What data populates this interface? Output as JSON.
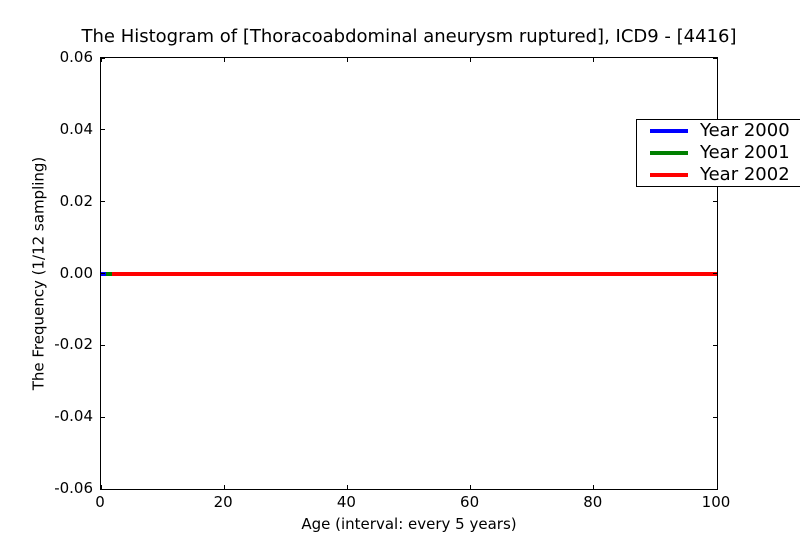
{
  "figure": {
    "title": "The Histogram of [Thoracoabdominal aneurysm ruptured], ICD9 - [4416]"
  },
  "chart_data": {
    "type": "line",
    "title": "The Histogram of [Thoracoabdominal aneurysm ruptured], ICD9 - [4416]",
    "xlabel": "Age (interval: every 5 years)",
    "ylabel": "The Frequency (1/12 sampling)",
    "xlim": [
      0,
      100
    ],
    "ylim": [
      -0.06,
      0.06
    ],
    "grid": false,
    "legend_position": "upper right",
    "x_ticks": [
      {
        "label": "0",
        "value": 0
      },
      {
        "label": "20",
        "value": 20
      },
      {
        "label": "40",
        "value": 40
      },
      {
        "label": "60",
        "value": 60
      },
      {
        "label": "80",
        "value": 80
      },
      {
        "label": "100",
        "value": 100
      }
    ],
    "y_ticks": [
      {
        "label": "0.06",
        "value": 0.06
      },
      {
        "label": "0.04",
        "value": 0.04
      },
      {
        "label": "0.02",
        "value": 0.02
      },
      {
        "label": "0.00",
        "value": 0.0
      },
      {
        "label": "-0.02",
        "value": -0.02
      },
      {
        "label": "-0.04",
        "value": -0.04
      },
      {
        "label": "-0.06",
        "value": -0.06
      }
    ],
    "series": [
      {
        "name": "Year 2000",
        "color": "#0000ff",
        "x": [
          0,
          100
        ],
        "y": [
          0,
          0
        ]
      },
      {
        "name": "Year 2001",
        "color": "#008000",
        "x": [
          0,
          100
        ],
        "y": [
          0,
          0
        ]
      },
      {
        "name": "Year 2002",
        "color": "#ff0000",
        "x": [
          0,
          100
        ],
        "y": [
          0,
          0
        ]
      }
    ]
  }
}
